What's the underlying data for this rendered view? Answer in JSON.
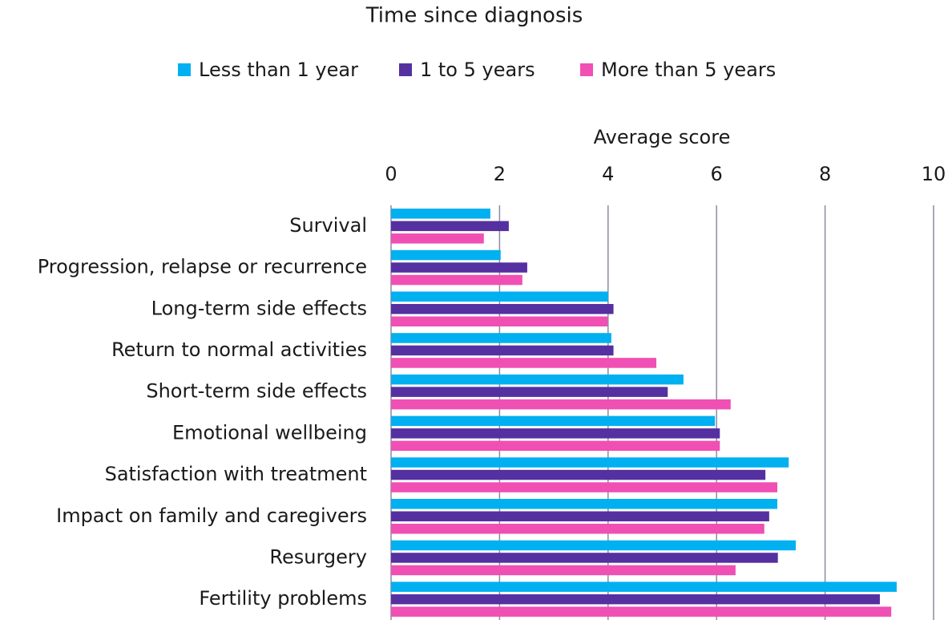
{
  "chart_data": {
    "type": "bar",
    "orientation": "horizontal",
    "title": "Time since diagnosis",
    "x_label": "Average score",
    "categories": [
      "Survival",
      "Progression, relapse or recurrence",
      "Long-term side effects",
      "Return to normal activities",
      "Short-term side effects",
      "Emotional wellbeing",
      "Satisfaction with treatment",
      "Impact on family and caregivers",
      "Resurgery",
      "Fertility problems"
    ],
    "series": [
      {
        "name": "Less than 1 year",
        "color": "#00b0f0",
        "values": [
          1.83,
          2.02,
          4.0,
          4.06,
          5.39,
          5.97,
          7.33,
          7.12,
          7.46,
          9.32
        ]
      },
      {
        "name": "1 to 5 years",
        "color": "#5530a0",
        "values": [
          2.17,
          2.51,
          4.1,
          4.1,
          5.1,
          6.06,
          6.9,
          6.97,
          7.13,
          9.01
        ]
      },
      {
        "name": "More than 5 years",
        "color": "#f04fb4",
        "values": [
          1.71,
          2.42,
          3.99,
          4.89,
          6.26,
          6.06,
          7.12,
          6.88,
          6.35,
          9.22
        ]
      }
    ],
    "xlim": [
      0,
      10
    ],
    "xticks": [
      0,
      2,
      4,
      6,
      8,
      10
    ],
    "grid": true,
    "legend": "top"
  }
}
